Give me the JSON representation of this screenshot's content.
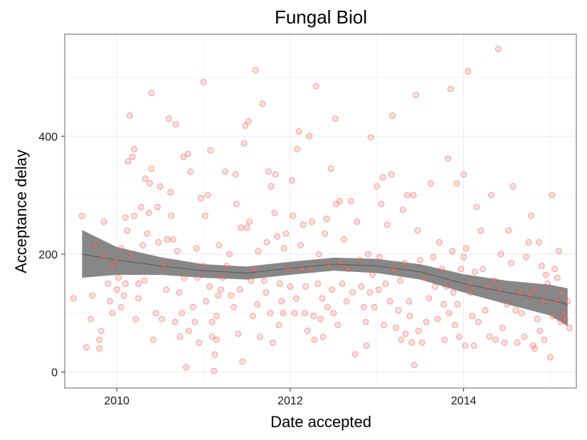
{
  "chart_data": {
    "type": "scatter",
    "title": "Fungal Biol",
    "xlabel": "Date accepted",
    "ylabel": "Acceptance delay",
    "xlim": [
      2009.4,
      2015.3
    ],
    "ylim": [
      -27,
      573
    ],
    "x_ticks": [
      {
        "value": 2010,
        "label": "2010"
      },
      {
        "value": 2012,
        "label": "2012"
      },
      {
        "value": 2014,
        "label": "2014"
      }
    ],
    "y_ticks": [
      {
        "value": 0,
        "label": "0"
      },
      {
        "value": 200,
        "label": "200"
      },
      {
        "value": 400,
        "label": "400"
      }
    ],
    "grid": true,
    "point_color": "#F8766D",
    "smooth_color": "#7a7a7a",
    "smooth": {
      "x": [
        2009.6,
        2010.0,
        2010.5,
        2011.0,
        2011.5,
        2012.0,
        2012.5,
        2013.0,
        2013.5,
        2014.0,
        2014.5,
        2015.0,
        2015.2
      ],
      "y": [
        200,
        190,
        180,
        172,
        168,
        176,
        183,
        180,
        170,
        150,
        135,
        122,
        115
      ],
      "lower": [
        160,
        165,
        165,
        160,
        157,
        165,
        172,
        168,
        157,
        135,
        115,
        96,
        78
      ],
      "upper": [
        241,
        212,
        195,
        183,
        179,
        187,
        194,
        192,
        183,
        166,
        155,
        148,
        142
      ]
    },
    "points": [
      [
        2009.5,
        125
      ],
      [
        2009.6,
        265
      ],
      [
        2009.65,
        42
      ],
      [
        2009.7,
        90
      ],
      [
        2009.72,
        130
      ],
      [
        2009.75,
        215
      ],
      [
        2009.8,
        55
      ],
      [
        2009.8,
        40
      ],
      [
        2009.82,
        70
      ],
      [
        2009.85,
        195
      ],
      [
        2009.85,
        255
      ],
      [
        2009.9,
        150
      ],
      [
        2009.92,
        120
      ],
      [
        2009.95,
        100
      ],
      [
        2009.95,
        180
      ],
      [
        2010.0,
        140
      ],
      [
        2010.0,
        190
      ],
      [
        2010.02,
        160
      ],
      [
        2010.05,
        210
      ],
      [
        2010.05,
        110
      ],
      [
        2010.08,
        130
      ],
      [
        2010.1,
        262
      ],
      [
        2010.1,
        150
      ],
      [
        2010.12,
        240
      ],
      [
        2010.13,
        357
      ],
      [
        2010.15,
        435
      ],
      [
        2010.17,
        200
      ],
      [
        2010.18,
        365
      ],
      [
        2010.2,
        378
      ],
      [
        2010.2,
        265
      ],
      [
        2010.22,
        90
      ],
      [
        2010.25,
        150
      ],
      [
        2010.25,
        125
      ],
      [
        2010.28,
        280
      ],
      [
        2010.3,
        215
      ],
      [
        2010.32,
        155
      ],
      [
        2010.33,
        328
      ],
      [
        2010.35,
        235
      ],
      [
        2010.37,
        270
      ],
      [
        2010.38,
        320
      ],
      [
        2010.4,
        473
      ],
      [
        2010.4,
        345
      ],
      [
        2010.42,
        55
      ],
      [
        2010.45,
        100
      ],
      [
        2010.47,
        280
      ],
      [
        2010.48,
        220
      ],
      [
        2010.5,
        315
      ],
      [
        2010.52,
        90
      ],
      [
        2010.55,
        180
      ],
      [
        2010.57,
        140
      ],
      [
        2010.58,
        225
      ],
      [
        2010.6,
        430
      ],
      [
        2010.62,
        305
      ],
      [
        2010.63,
        265
      ],
      [
        2010.65,
        225
      ],
      [
        2010.67,
        85
      ],
      [
        2010.68,
        420
      ],
      [
        2010.7,
        205
      ],
      [
        2010.72,
        135
      ],
      [
        2010.73,
        60
      ],
      [
        2010.75,
        100
      ],
      [
        2010.77,
        365
      ],
      [
        2010.78,
        160
      ],
      [
        2010.8,
        8
      ],
      [
        2010.82,
        370
      ],
      [
        2010.83,
        70
      ],
      [
        2010.85,
        340
      ],
      [
        2010.88,
        110
      ],
      [
        2010.9,
        85
      ],
      [
        2010.92,
        210
      ],
      [
        2010.93,
        160
      ],
      [
        2010.95,
        50
      ],
      [
        2010.97,
        295
      ],
      [
        2011.0,
        180
      ],
      [
        2011.0,
        492
      ],
      [
        2011.02,
        265
      ],
      [
        2011.03,
        120
      ],
      [
        2011.05,
        300
      ],
      [
        2011.07,
        145
      ],
      [
        2011.08,
        376
      ],
      [
        2011.1,
        85
      ],
      [
        2011.1,
        60
      ],
      [
        2011.12,
        2
      ],
      [
        2011.13,
        30
      ],
      [
        2011.15,
        95
      ],
      [
        2011.15,
        55
      ],
      [
        2011.17,
        130
      ],
      [
        2011.18,
        215
      ],
      [
        2011.2,
        140
      ],
      [
        2011.22,
        160
      ],
      [
        2011.25,
        340
      ],
      [
        2011.27,
        180
      ],
      [
        2011.3,
        200
      ],
      [
        2011.32,
        130
      ],
      [
        2011.35,
        110
      ],
      [
        2011.37,
        335
      ],
      [
        2011.38,
        285
      ],
      [
        2011.4,
        65
      ],
      [
        2011.42,
        140
      ],
      [
        2011.43,
        245
      ],
      [
        2011.45,
        18
      ],
      [
        2011.47,
        388
      ],
      [
        2011.48,
        418
      ],
      [
        2011.5,
        245
      ],
      [
        2011.52,
        425
      ],
      [
        2011.53,
        255
      ],
      [
        2011.55,
        155
      ],
      [
        2011.57,
        95
      ],
      [
        2011.58,
        175
      ],
      [
        2011.6,
        512
      ],
      [
        2011.62,
        115
      ],
      [
        2011.63,
        205
      ],
      [
        2011.65,
        60
      ],
      [
        2011.68,
        455
      ],
      [
        2011.7,
        155
      ],
      [
        2011.72,
        135
      ],
      [
        2011.73,
        220
      ],
      [
        2011.75,
        340
      ],
      [
        2011.77,
        100
      ],
      [
        2011.78,
        315
      ],
      [
        2011.8,
        50
      ],
      [
        2011.82,
        270
      ],
      [
        2011.83,
        335
      ],
      [
        2011.85,
        230
      ],
      [
        2011.87,
        80
      ],
      [
        2011.88,
        150
      ],
      [
        2011.9,
        120
      ],
      [
        2011.92,
        100
      ],
      [
        2011.93,
        210
      ],
      [
        2011.95,
        235
      ],
      [
        2011.97,
        175
      ],
      [
        2012.0,
        145
      ],
      [
        2012.02,
        325
      ],
      [
        2012.03,
        265
      ],
      [
        2012.05,
        100
      ],
      [
        2012.07,
        125
      ],
      [
        2012.08,
        378
      ],
      [
        2012.1,
        408
      ],
      [
        2012.12,
        215
      ],
      [
        2012.13,
        175
      ],
      [
        2012.15,
        250
      ],
      [
        2012.17,
        100
      ],
      [
        2012.18,
        145
      ],
      [
        2012.2,
        70
      ],
      [
        2012.22,
        400
      ],
      [
        2012.23,
        175
      ],
      [
        2012.25,
        255
      ],
      [
        2012.27,
        95
      ],
      [
        2012.28,
        55
      ],
      [
        2012.3,
        485
      ],
      [
        2012.32,
        150
      ],
      [
        2012.33,
        200
      ],
      [
        2012.35,
        90
      ],
      [
        2012.37,
        125
      ],
      [
        2012.38,
        60
      ],
      [
        2012.4,
        235
      ],
      [
        2012.42,
        260
      ],
      [
        2012.43,
        110
      ],
      [
        2012.45,
        180
      ],
      [
        2012.47,
        345
      ],
      [
        2012.48,
        140
      ],
      [
        2012.5,
        100
      ],
      [
        2012.52,
        430
      ],
      [
        2012.53,
        285
      ],
      [
        2012.55,
        80
      ],
      [
        2012.57,
        290
      ],
      [
        2012.58,
        185
      ],
      [
        2012.6,
        150
      ],
      [
        2012.62,
        225
      ],
      [
        2012.65,
        120
      ],
      [
        2012.67,
        175
      ],
      [
        2012.7,
        290
      ],
      [
        2012.72,
        135
      ],
      [
        2012.75,
        30
      ],
      [
        2012.77,
        255
      ],
      [
        2012.8,
        190
      ],
      [
        2012.82,
        145
      ],
      [
        2012.85,
        110
      ],
      [
        2012.87,
        85
      ],
      [
        2012.88,
        45
      ],
      [
        2012.9,
        200
      ],
      [
        2012.92,
        135
      ],
      [
        2012.93,
        398
      ],
      [
        2012.95,
        165
      ],
      [
        2012.97,
        110
      ],
      [
        2013.0,
        315
      ],
      [
        2013.02,
        140
      ],
      [
        2013.03,
        195
      ],
      [
        2013.05,
        285
      ],
      [
        2013.07,
        330
      ],
      [
        2013.08,
        80
      ],
      [
        2013.1,
        150
      ],
      [
        2013.12,
        250
      ],
      [
        2013.15,
        120
      ],
      [
        2013.17,
        335
      ],
      [
        2013.18,
        435
      ],
      [
        2013.2,
        175
      ],
      [
        2013.22,
        75
      ],
      [
        2013.25,
        105
      ],
      [
        2013.27,
        155
      ],
      [
        2013.28,
        55
      ],
      [
        2013.3,
        275
      ],
      [
        2013.32,
        185
      ],
      [
        2013.33,
        65
      ],
      [
        2013.35,
        300
      ],
      [
        2013.37,
        120
      ],
      [
        2013.38,
        95
      ],
      [
        2013.4,
        50
      ],
      [
        2013.42,
        300
      ],
      [
        2013.43,
        12
      ],
      [
        2013.45,
        470
      ],
      [
        2013.47,
        240
      ],
      [
        2013.48,
        70
      ],
      [
        2013.5,
        190
      ],
      [
        2013.52,
        50
      ],
      [
        2013.55,
        160
      ],
      [
        2013.57,
        85
      ],
      [
        2013.6,
        125
      ],
      [
        2013.62,
        320
      ],
      [
        2013.65,
        195
      ],
      [
        2013.67,
        145
      ],
      [
        2013.7,
        90
      ],
      [
        2013.72,
        220
      ],
      [
        2013.75,
        175
      ],
      [
        2013.77,
        115
      ],
      [
        2013.78,
        55
      ],
      [
        2013.8,
        145
      ],
      [
        2013.82,
        362
      ],
      [
        2013.83,
        100
      ],
      [
        2013.85,
        480
      ],
      [
        2013.87,
        205
      ],
      [
        2013.88,
        135
      ],
      [
        2013.9,
        80
      ],
      [
        2013.92,
        320
      ],
      [
        2013.93,
        115
      ],
      [
        2013.95,
        60
      ],
      [
        2013.97,
        175
      ],
      [
        2014.0,
        195
      ],
      [
        2014.0,
        335
      ],
      [
        2014.02,
        45
      ],
      [
        2014.03,
        210
      ],
      [
        2014.05,
        510
      ],
      [
        2014.07,
        150
      ],
      [
        2014.08,
        135
      ],
      [
        2014.1,
        95
      ],
      [
        2014.12,
        45
      ],
      [
        2014.13,
        170
      ],
      [
        2014.15,
        280
      ],
      [
        2014.17,
        85
      ],
      [
        2014.2,
        240
      ],
      [
        2014.22,
        175
      ],
      [
        2014.25,
        105
      ],
      [
        2014.27,
        145
      ],
      [
        2014.3,
        60
      ],
      [
        2014.32,
        300
      ],
      [
        2014.35,
        155
      ],
      [
        2014.37,
        55
      ],
      [
        2014.4,
        548
      ],
      [
        2014.42,
        140
      ],
      [
        2014.43,
        200
      ],
      [
        2014.45,
        75
      ],
      [
        2014.47,
        50
      ],
      [
        2014.5,
        115
      ],
      [
        2014.52,
        240
      ],
      [
        2014.55,
        185
      ],
      [
        2014.57,
        315
      ],
      [
        2014.6,
        105
      ],
      [
        2014.62,
        50
      ],
      [
        2014.65,
        135
      ],
      [
        2014.67,
        100
      ],
      [
        2014.7,
        60
      ],
      [
        2014.72,
        195
      ],
      [
        2014.75,
        220
      ],
      [
        2014.77,
        130
      ],
      [
        2014.78,
        265
      ],
      [
        2014.8,
        45
      ],
      [
        2014.82,
        40
      ],
      [
        2014.83,
        140
      ],
      [
        2014.85,
        90
      ],
      [
        2014.87,
        220
      ],
      [
        2014.88,
        70
      ],
      [
        2014.9,
        180
      ],
      [
        2014.92,
        120
      ],
      [
        2014.93,
        55
      ],
      [
        2014.95,
        165
      ],
      [
        2014.97,
        150
      ],
      [
        2015.0,
        25
      ],
      [
        2015.02,
        300
      ],
      [
        2015.03,
        95
      ],
      [
        2015.05,
        175
      ],
      [
        2015.07,
        120
      ],
      [
        2015.08,
        160
      ],
      [
        2015.1,
        205
      ],
      [
        2015.12,
        85
      ],
      [
        2015.13,
        135
      ],
      [
        2015.15,
        100
      ],
      [
        2015.17,
        90
      ],
      [
        2015.2,
        120
      ],
      [
        2015.22,
        75
      ]
    ]
  }
}
